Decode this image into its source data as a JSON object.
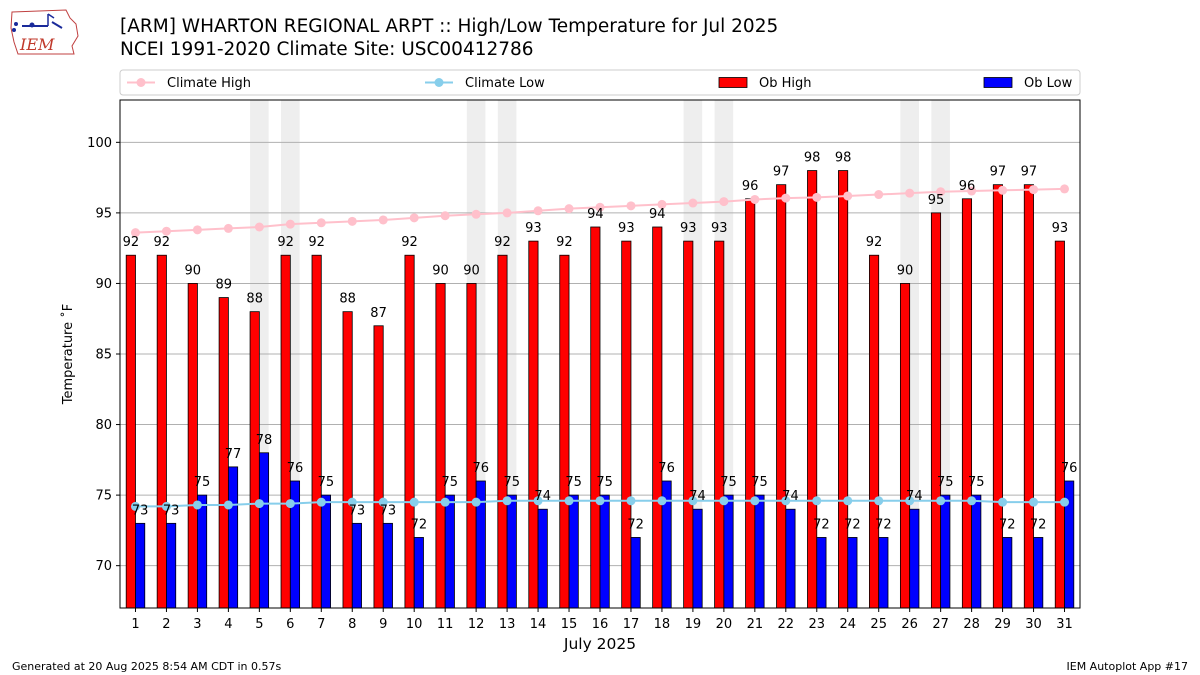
{
  "header": {
    "title_line1": "[ARM] WHARTON REGIONAL ARPT :: High/Low Temperature for Jul 2025",
    "title_line2": "NCEI 1991-2020 Climate Site: USC00412786",
    "logo_text": "IEM"
  },
  "footer": {
    "generated": "Generated at 20 Aug 2025 8:54 AM CDT in 0.57s",
    "app": "IEM Autoplot App #17"
  },
  "colors": {
    "ob_high": "#ff0000",
    "ob_low": "#0000ff",
    "climate_high": "#ffc0cb",
    "climate_low": "#87ceeb",
    "weekend_shade": "#eeeeee",
    "grid": "#b0b0b0"
  },
  "chart_data": {
    "type": "bar",
    "title": "[ARM] WHARTON REGIONAL ARPT :: High/Low Temperature for Jul 2025",
    "xlabel": "July 2025",
    "ylabel": "Temperature ˚F",
    "ylim": [
      67,
      103
    ],
    "yticks": [
      70,
      75,
      80,
      85,
      90,
      95,
      100
    ],
    "grid": true,
    "legend_position": "top",
    "categories": [
      "1",
      "2",
      "3",
      "4",
      "5",
      "6",
      "7",
      "8",
      "9",
      "10",
      "11",
      "12",
      "13",
      "14",
      "15",
      "16",
      "17",
      "18",
      "19",
      "20",
      "21",
      "22",
      "23",
      "24",
      "25",
      "26",
      "27",
      "28",
      "29",
      "30",
      "31"
    ],
    "shaded_days": [
      5,
      6,
      12,
      13,
      19,
      20,
      26,
      27
    ],
    "series": [
      {
        "name": "Ob High",
        "kind": "bar",
        "values": [
          92,
          92,
          90,
          89,
          88,
          92,
          92,
          88,
          87,
          92,
          90,
          90,
          92,
          93,
          92,
          94,
          93,
          94,
          93,
          93,
          96,
          97,
          98,
          98,
          92,
          90,
          95,
          96,
          97,
          97,
          93
        ]
      },
      {
        "name": "Ob Low",
        "kind": "bar",
        "values": [
          73,
          73,
          75,
          77,
          78,
          76,
          75,
          73,
          73,
          72,
          75,
          76,
          75,
          74,
          75,
          75,
          72,
          76,
          74,
          75,
          75,
          74,
          72,
          72,
          72,
          74,
          75,
          75,
          72,
          72,
          76
        ]
      },
      {
        "name": "Climate High",
        "kind": "line",
        "values": [
          93.6,
          93.7,
          93.8,
          93.9,
          94.0,
          94.2,
          94.3,
          94.4,
          94.5,
          94.65,
          94.8,
          94.9,
          95.0,
          95.15,
          95.3,
          95.4,
          95.5,
          95.6,
          95.7,
          95.8,
          95.95,
          96.05,
          96.1,
          96.2,
          96.3,
          96.4,
          96.5,
          96.55,
          96.6,
          96.65,
          96.7
        ]
      },
      {
        "name": "Climate Low",
        "kind": "line",
        "values": [
          74.2,
          74.2,
          74.3,
          74.3,
          74.4,
          74.4,
          74.5,
          74.5,
          74.5,
          74.5,
          74.5,
          74.5,
          74.6,
          74.6,
          74.6,
          74.6,
          74.6,
          74.6,
          74.6,
          74.6,
          74.6,
          74.6,
          74.6,
          74.6,
          74.6,
          74.6,
          74.6,
          74.6,
          74.5,
          74.5,
          74.5
        ]
      }
    ]
  }
}
